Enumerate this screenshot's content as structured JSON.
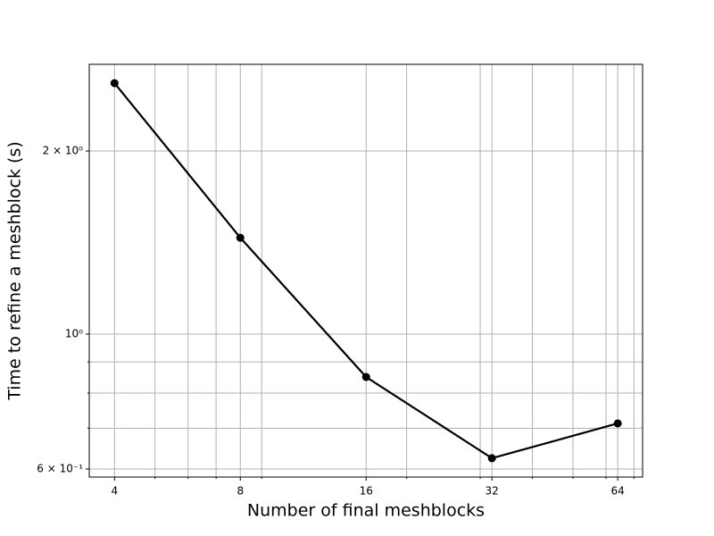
{
  "chart_data": {
    "type": "line",
    "xlabel": "Number of final meshblocks",
    "ylabel": "Time to refine a meshblock (s)",
    "x": [
      4,
      8,
      16,
      32,
      64
    ],
    "series": [
      {
        "color": "#000000",
        "values": [
          2.586,
          1.44,
          0.85,
          0.625,
          0.713
        ]
      }
    ],
    "xscale": "log",
    "yscale": "log",
    "xlim": [
      3.48,
      73.4
    ],
    "ylim": [
      0.582,
      2.777
    ],
    "xticks": [
      4,
      8,
      16,
      32,
      64
    ],
    "xminorticks": [
      5,
      6,
      7,
      9,
      20,
      30,
      40,
      50,
      60,
      70
    ],
    "yticks": [
      {
        "value": 0.6,
        "label": "6 × 10⁻¹"
      },
      {
        "value": 1,
        "label": "10⁰"
      },
      {
        "value": 2,
        "label": "2 × 10⁰"
      }
    ],
    "yminorticks": [
      0.7,
      0.8,
      0.9
    ],
    "grid": true
  }
}
